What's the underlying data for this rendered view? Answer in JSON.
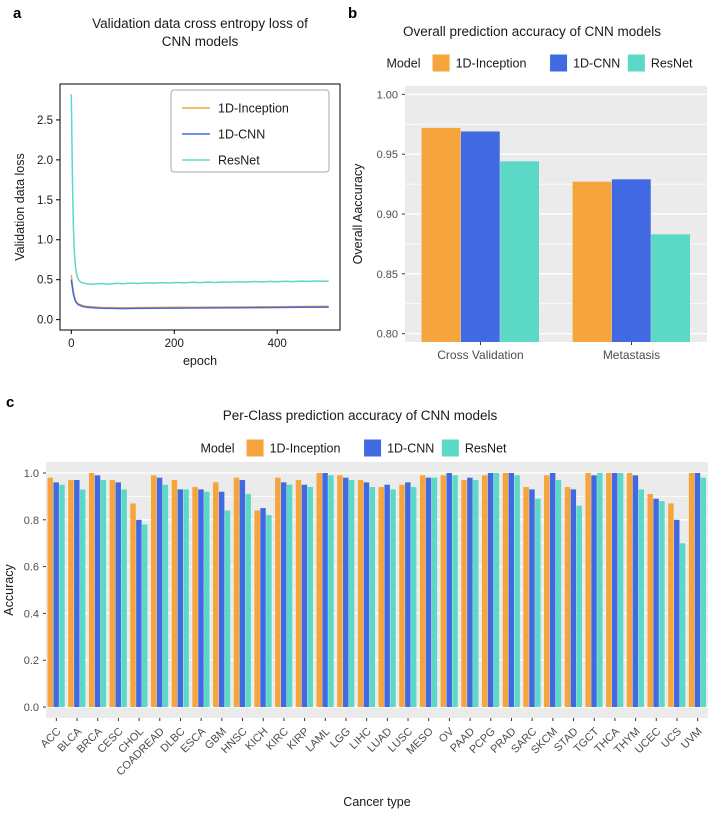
{
  "figure": {
    "panel_labels": [
      "a",
      "b",
      "c"
    ]
  },
  "palette": {
    "orange": "#F6A43C",
    "blue": "#4169E1",
    "teal": "#5CD8C6",
    "panel_bg": "#EBEBEB",
    "grid": "#FFFFFF",
    "tick_text": "#4D4D4D"
  },
  "chart_data": [
    {
      "id": "panel-a",
      "type": "line",
      "title_lines": [
        "Validation data cross entropy loss of",
        "CNN models"
      ],
      "xlabel": "epoch",
      "ylabel": "Validation data loss",
      "xlim": [
        -22,
        522
      ],
      "ylim": [
        -0.13,
        2.95
      ],
      "xticks": {
        "values": [
          0,
          200,
          400
        ],
        "labels": [
          "0",
          "200",
          "400"
        ]
      },
      "yticks": {
        "values": [
          0.0,
          0.5,
          1.0,
          1.5,
          2.0,
          2.5
        ],
        "labels": [
          "0.0",
          "0.5",
          "1.0",
          "1.5",
          "2.0",
          "2.5"
        ]
      },
      "legend_position": "upper right",
      "series": [
        {
          "name": "1D-Inception",
          "color": "#F6A43C",
          "points": [
            [
              0,
              0.56
            ],
            [
              2,
              0.44
            ],
            [
              4,
              0.35
            ],
            [
              6,
              0.29
            ],
            [
              8,
              0.25
            ],
            [
              10,
              0.22
            ],
            [
              13,
              0.2
            ],
            [
              16,
              0.19
            ],
            [
              20,
              0.18
            ],
            [
              25,
              0.17
            ],
            [
              30,
              0.165
            ],
            [
              40,
              0.16
            ],
            [
              50,
              0.155
            ],
            [
              60,
              0.152
            ],
            [
              80,
              0.15
            ],
            [
              100,
              0.148
            ],
            [
              130,
              0.15
            ],
            [
              160,
              0.152
            ],
            [
              200,
              0.154
            ],
            [
              240,
              0.155
            ],
            [
              280,
              0.157
            ],
            [
              320,
              0.158
            ],
            [
              360,
              0.16
            ],
            [
              400,
              0.162
            ],
            [
              440,
              0.164
            ],
            [
              470,
              0.165
            ],
            [
              500,
              0.167
            ]
          ]
        },
        {
          "name": "1D-CNN",
          "color": "#4169E1",
          "points": [
            [
              0,
              0.5
            ],
            [
              2,
              0.4
            ],
            [
              4,
              0.32
            ],
            [
              6,
              0.27
            ],
            [
              8,
              0.23
            ],
            [
              10,
              0.21
            ],
            [
              13,
              0.19
            ],
            [
              16,
              0.18
            ],
            [
              20,
              0.17
            ],
            [
              25,
              0.16
            ],
            [
              30,
              0.155
            ],
            [
              40,
              0.15
            ],
            [
              50,
              0.145
            ],
            [
              60,
              0.142
            ],
            [
              80,
              0.14
            ],
            [
              100,
              0.138
            ],
            [
              130,
              0.14
            ],
            [
              160,
              0.142
            ],
            [
              200,
              0.144
            ],
            [
              240,
              0.145
            ],
            [
              280,
              0.147
            ],
            [
              320,
              0.148
            ],
            [
              360,
              0.15
            ],
            [
              400,
              0.152
            ],
            [
              440,
              0.154
            ],
            [
              470,
              0.155
            ],
            [
              500,
              0.157
            ]
          ]
        },
        {
          "name": "ResNet",
          "color": "#5CD8C6",
          "points": [
            [
              0,
              2.82
            ],
            [
              1,
              2.35
            ],
            [
              2,
              1.8
            ],
            [
              3,
              1.45
            ],
            [
              4,
              1.18
            ],
            [
              5,
              0.98
            ],
            [
              6,
              0.84
            ],
            [
              8,
              0.67
            ],
            [
              10,
              0.58
            ],
            [
              12,
              0.53
            ],
            [
              15,
              0.49
            ],
            [
              18,
              0.47
            ],
            [
              22,
              0.46
            ],
            [
              30,
              0.45
            ],
            [
              40,
              0.443
            ],
            [
              50,
              0.447
            ],
            [
              60,
              0.452
            ],
            [
              70,
              0.444
            ],
            [
              80,
              0.45
            ],
            [
              90,
              0.456
            ],
            [
              100,
              0.45
            ],
            [
              115,
              0.458
            ],
            [
              130,
              0.452
            ],
            [
              145,
              0.46
            ],
            [
              160,
              0.455
            ],
            [
              175,
              0.463
            ],
            [
              190,
              0.458
            ],
            [
              205,
              0.465
            ],
            [
              220,
              0.46
            ],
            [
              235,
              0.468
            ],
            [
              250,
              0.463
            ],
            [
              265,
              0.47
            ],
            [
              280,
              0.465
            ],
            [
              295,
              0.472
            ],
            [
              310,
              0.468
            ],
            [
              325,
              0.475
            ],
            [
              340,
              0.47
            ],
            [
              355,
              0.477
            ],
            [
              370,
              0.472
            ],
            [
              385,
              0.478
            ],
            [
              400,
              0.474
            ],
            [
              415,
              0.48
            ],
            [
              430,
              0.476
            ],
            [
              445,
              0.482
            ],
            [
              460,
              0.478
            ],
            [
              475,
              0.484
            ],
            [
              490,
              0.48
            ],
            [
              500,
              0.483
            ]
          ]
        }
      ]
    },
    {
      "id": "panel-b",
      "type": "bar",
      "title": "Overall prediction accuracy of CNN models",
      "legend_title": "Model",
      "ylabel": "Overall Aaccuracy",
      "categories": [
        "Cross Validation",
        "Metastasis"
      ],
      "yticks": {
        "values": [
          0.8,
          0.85,
          0.9,
          0.95,
          1.0
        ],
        "labels": [
          "0.80",
          "0.85",
          "0.90",
          "0.95",
          "1.00"
        ]
      },
      "ylim": [
        0.793,
        1.007
      ],
      "series": [
        {
          "name": "1D-Inception",
          "color": "#F6A43C",
          "values": [
            0.972,
            0.927
          ]
        },
        {
          "name": "1D-CNN",
          "color": "#4169E1",
          "values": [
            0.969,
            0.929
          ]
        },
        {
          "name": "ResNet",
          "color": "#5CD8C6",
          "values": [
            0.944,
            0.883
          ]
        }
      ]
    },
    {
      "id": "panel-c",
      "type": "bar",
      "title": "Per-Class prediction accuracy of CNN models",
      "legend_title": "Model",
      "xlabel": "Cancer type",
      "ylabel": "Accuracy",
      "categories": [
        "ACC",
        "BLCA",
        "BRCA",
        "CESC",
        "CHOL",
        "COADREAD",
        "DLBC",
        "ESCA",
        "GBM",
        "HNSC",
        "KICH",
        "KIRC",
        "KIRP",
        "LAML",
        "LGG",
        "LIHC",
        "LUAD",
        "LUSC",
        "MESO",
        "OV",
        "PAAD",
        "PCPG",
        "PRAD",
        "SARC",
        "SKCM",
        "STAD",
        "TGCT",
        "THCA",
        "THYM",
        "UCEC",
        "UCS",
        "UVM"
      ],
      "yticks": {
        "values": [
          0.0,
          0.2,
          0.4,
          0.6,
          0.8,
          1.0
        ],
        "labels": [
          "0.0",
          "0.2",
          "0.4",
          "0.6",
          "0.8",
          "1.0"
        ]
      },
      "ylim": [
        -0.047,
        1.047
      ],
      "series": [
        {
          "name": "1D-Inception",
          "color": "#F6A43C",
          "values": [
            0.98,
            0.97,
            1.0,
            0.97,
            0.87,
            0.99,
            0.97,
            0.94,
            0.96,
            0.98,
            0.84,
            0.98,
            0.97,
            1.0,
            0.99,
            0.97,
            0.94,
            0.95,
            0.99,
            0.99,
            0.97,
            0.99,
            1.0,
            0.94,
            0.99,
            0.94,
            1.0,
            1.0,
            1.0,
            0.91,
            0.87,
            1.0
          ]
        },
        {
          "name": "1D-CNN",
          "color": "#4169E1",
          "values": [
            0.96,
            0.97,
            0.99,
            0.96,
            0.8,
            0.98,
            0.93,
            0.93,
            0.92,
            0.97,
            0.85,
            0.96,
            0.95,
            1.0,
            0.98,
            0.96,
            0.95,
            0.96,
            0.98,
            1.0,
            0.98,
            1.0,
            1.0,
            0.93,
            1.0,
            0.93,
            0.99,
            1.0,
            0.99,
            0.89,
            0.8,
            1.0
          ]
        },
        {
          "name": "ResNet",
          "color": "#5CD8C6",
          "values": [
            0.95,
            0.93,
            0.97,
            0.93,
            0.78,
            0.95,
            0.93,
            0.92,
            0.84,
            0.91,
            0.82,
            0.95,
            0.94,
            0.99,
            0.97,
            0.94,
            0.93,
            0.94,
            0.98,
            0.99,
            0.97,
            1.0,
            0.99,
            0.89,
            0.97,
            0.86,
            1.0,
            1.0,
            0.93,
            0.88,
            0.7,
            0.98
          ]
        }
      ]
    }
  ]
}
